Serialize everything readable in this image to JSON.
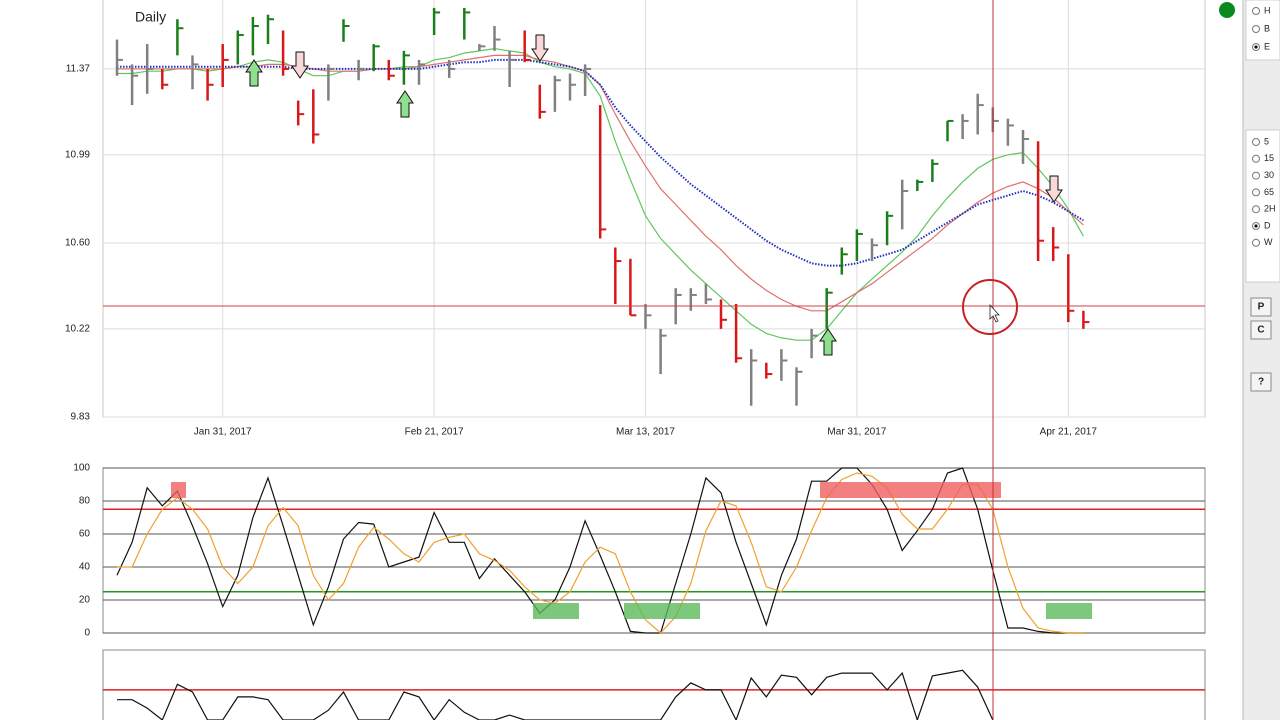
{
  "chart_data": [
    {
      "type": "ohlc",
      "title": "Daily",
      "categories": [
        null,
        null,
        null,
        null,
        null,
        null,
        null,
        "Jan 31, 2017",
        null,
        null,
        null,
        null,
        null,
        null,
        null,
        null,
        null,
        null,
        null,
        null,
        null,
        "Feb 21, 2017",
        null,
        null,
        null,
        null,
        null,
        null,
        null,
        null,
        null,
        null,
        null,
        null,
        null,
        "Mar 13, 2017",
        null,
        null,
        null,
        null,
        null,
        null,
        null,
        null,
        null,
        null,
        null,
        null,
        null,
        "Mar 31, 2017",
        null,
        null,
        null,
        null,
        null,
        null,
        null,
        null,
        null,
        null,
        null,
        null,
        null,
        "Apr 21, 2017",
        null
      ],
      "high": [
        11.5,
        11.39,
        11.48,
        11.37,
        11.59,
        11.43,
        11.37,
        11.48,
        11.54,
        11.6,
        11.61,
        11.54,
        11.23,
        11.28,
        11.39,
        11.59,
        11.41,
        11.48,
        11.41,
        11.45,
        11.41,
        11.64,
        11.41,
        11.64,
        11.48,
        11.56,
        11.45,
        11.54,
        11.3,
        11.34,
        11.35,
        11.39,
        11.21,
        10.58,
        10.53,
        10.33,
        10.22,
        10.4,
        10.4,
        10.42,
        10.35,
        10.33,
        10.13,
        10.07,
        10.13,
        10.05,
        10.22,
        10.4,
        10.58,
        10.66,
        10.62,
        10.74,
        10.88,
        10.88,
        10.97,
        11.14,
        11.17,
        11.26,
        11.2,
        11.15,
        11.1,
        11.05,
        10.67,
        10.55,
        10.3
      ],
      "low": [
        11.34,
        11.21,
        11.26,
        11.28,
        11.43,
        11.28,
        11.23,
        11.29,
        11.39,
        11.43,
        11.48,
        11.34,
        11.12,
        11.04,
        11.23,
        11.49,
        11.32,
        11.36,
        11.32,
        11.3,
        11.3,
        11.52,
        11.33,
        11.5,
        11.45,
        11.45,
        11.29,
        11.4,
        11.15,
        11.18,
        11.23,
        11.25,
        10.62,
        10.33,
        10.28,
        10.22,
        10.02,
        10.24,
        10.3,
        10.33,
        10.22,
        10.07,
        9.88,
        10.0,
        9.99,
        9.88,
        10.09,
        10.22,
        10.46,
        10.52,
        10.52,
        10.59,
        10.66,
        10.83,
        10.87,
        11.05,
        11.06,
        11.08,
        11.09,
        11.03,
        10.95,
        10.52,
        10.52,
        10.25,
        10.22
      ],
      "close": [
        11.41,
        11.34,
        11.37,
        11.3,
        11.55,
        11.39,
        11.3,
        11.41,
        11.52,
        11.56,
        11.59,
        11.37,
        11.17,
        11.08,
        11.37,
        11.56,
        11.37,
        11.47,
        11.34,
        11.43,
        11.39,
        11.62,
        11.37,
        11.62,
        11.47,
        11.5,
        11.41,
        11.41,
        11.18,
        11.32,
        11.3,
        11.37,
        10.66,
        10.52,
        10.28,
        10.28,
        10.19,
        10.37,
        10.37,
        10.35,
        10.26,
        10.09,
        10.08,
        10.02,
        10.08,
        10.03,
        10.19,
        10.38,
        10.55,
        10.64,
        10.59,
        10.72,
        10.83,
        10.87,
        10.95,
        11.14,
        11.14,
        11.21,
        11.14,
        11.12,
        11.06,
        10.61,
        10.58,
        10.3,
        10.25
      ],
      "colors": [
        "#808080",
        "#808080",
        "#808080",
        "#d81818",
        "#1a7f1a",
        "#808080",
        "#d81818",
        "#d81818",
        "#1a7f1a",
        "#1a7f1a",
        "#1a7f1a",
        "#d81818",
        "#d81818",
        "#d81818",
        "#808080",
        "#1a7f1a",
        "#808080",
        "#1a7f1a",
        "#d81818",
        "#1a7f1a",
        "#808080",
        "#1a7f1a",
        "#808080",
        "#1a7f1a",
        "#808080",
        "#808080",
        "#808080",
        "#d81818",
        "#d81818",
        "#808080",
        "#808080",
        "#808080",
        "#d81818",
        "#d81818",
        "#d81818",
        "#808080",
        "#808080",
        "#808080",
        "#808080",
        "#808080",
        "#d81818",
        "#d81818",
        "#808080",
        "#d81818",
        "#808080",
        "#808080",
        "#808080",
        "#1a7f1a",
        "#1a7f1a",
        "#1a7f1a",
        "#808080",
        "#1a7f1a",
        "#808080",
        "#1a7f1a",
        "#1a7f1a",
        "#1a7f1a",
        "#808080",
        "#808080",
        "#808080",
        "#808080",
        "#808080",
        "#d81818",
        "#d81818",
        "#d81818",
        "#d81818"
      ],
      "series": [
        {
          "color": "#5cc85c",
          "style": "solid",
          "values": [
            11.35,
            11.35,
            11.36,
            11.36,
            11.37,
            11.37,
            11.36,
            11.37,
            11.38,
            11.4,
            11.41,
            11.4,
            11.37,
            11.34,
            11.34,
            11.36,
            11.36,
            11.37,
            11.37,
            11.38,
            11.38,
            11.41,
            11.42,
            11.44,
            11.45,
            11.46,
            11.45,
            11.44,
            11.4,
            11.38,
            11.37,
            11.35,
            11.25,
            11.05,
            10.88,
            10.72,
            10.62,
            10.55,
            10.48,
            10.42,
            10.36,
            10.3,
            10.24,
            10.2,
            10.18,
            10.17,
            10.17,
            10.22,
            10.3,
            10.38,
            10.44,
            10.5,
            10.56,
            10.63,
            10.72,
            10.8,
            10.87,
            10.93,
            10.97,
            10.99,
            11.0,
            10.93,
            10.85,
            10.75,
            10.63
          ]
        },
        {
          "color": "#e07070",
          "style": "solid",
          "values": [
            11.37,
            11.37,
            11.37,
            11.37,
            11.37,
            11.37,
            11.37,
            11.37,
            11.38,
            11.38,
            11.39,
            11.39,
            11.38,
            11.37,
            11.36,
            11.36,
            11.36,
            11.37,
            11.37,
            11.37,
            11.38,
            11.39,
            11.4,
            11.41,
            11.42,
            11.43,
            11.43,
            11.43,
            11.41,
            11.4,
            11.38,
            11.36,
            11.3,
            11.17,
            11.05,
            10.94,
            10.84,
            10.77,
            10.7,
            10.63,
            10.57,
            10.5,
            10.44,
            10.39,
            10.35,
            10.32,
            10.3,
            10.3,
            10.34,
            10.38,
            10.42,
            10.47,
            10.52,
            10.57,
            10.62,
            10.68,
            10.73,
            10.78,
            10.82,
            10.85,
            10.87,
            10.84,
            10.8,
            10.74,
            10.68
          ]
        },
        {
          "color": "#2030c0",
          "style": "dotted",
          "values": [
            11.38,
            11.38,
            11.38,
            11.38,
            11.38,
            11.38,
            11.38,
            11.38,
            11.38,
            11.38,
            11.38,
            11.38,
            11.37,
            11.37,
            11.37,
            11.37,
            11.37,
            11.37,
            11.37,
            11.37,
            11.37,
            11.38,
            11.39,
            11.4,
            11.4,
            11.41,
            11.41,
            11.41,
            11.4,
            11.39,
            11.38,
            11.36,
            11.3,
            11.2,
            11.12,
            11.05,
            10.98,
            10.92,
            10.86,
            10.81,
            10.76,
            10.71,
            10.66,
            10.61,
            10.57,
            10.54,
            10.51,
            10.5,
            10.5,
            10.51,
            10.53,
            10.55,
            10.57,
            10.61,
            10.65,
            10.69,
            10.73,
            10.77,
            10.79,
            10.81,
            10.83,
            10.81,
            10.78,
            10.74,
            10.7
          ]
        }
      ],
      "ylim": [
        9.83,
        11.675
      ],
      "yticks": [
        9.83,
        10.22,
        {
          "value": 10.6,
          "label": "10.60"
        },
        10.99,
        11.37
      ],
      "grid": true
    },
    {
      "type": "line",
      "series": [
        {
          "color": "#111111",
          "values": [
            35,
            55,
            88,
            77,
            86,
            65,
            42,
            16,
            35,
            70,
            94,
            65,
            35,
            5,
            28,
            57,
            67,
            66,
            40,
            43,
            46,
            73,
            55,
            55,
            33,
            45,
            35,
            25,
            12,
            20,
            40,
            68,
            47,
            25,
            1,
            0,
            0,
            30,
            60,
            94,
            85,
            55,
            30,
            5,
            35,
            57,
            92,
            92,
            100,
            100,
            90,
            75,
            50,
            62,
            75,
            97,
            100,
            75,
            38,
            3,
            3,
            1,
            0,
            0,
            0
          ]
        },
        {
          "color": "#f0a030",
          "values": [
            40,
            40,
            60,
            75,
            82,
            75,
            63,
            40,
            30,
            40,
            65,
            76,
            65,
            35,
            20,
            30,
            52,
            64,
            57,
            48,
            43,
            55,
            58,
            60,
            48,
            44,
            38,
            28,
            20,
            18,
            25,
            43,
            52,
            48,
            25,
            8,
            0,
            10,
            30,
            62,
            80,
            77,
            55,
            28,
            25,
            40,
            62,
            82,
            93,
            97,
            95,
            88,
            72,
            63,
            63,
            75,
            90,
            90,
            75,
            40,
            15,
            3,
            1,
            0,
            0
          ]
        }
      ],
      "levels": [
        {
          "value": 75,
          "color": "#e02020"
        },
        {
          "value": 25,
          "color": "#1f9a1f"
        }
      ],
      "ylim": [
        0,
        100
      ],
      "yticks": [
        0,
        20,
        40,
        60,
        80,
        100
      ],
      "grid": true
    },
    {
      "type": "line",
      "series": [
        {
          "color": "#111111",
          "values": [
            29,
            29,
            17,
            0,
            51,
            40,
            0,
            0,
            33,
            33,
            29,
            0,
            0,
            0,
            14,
            40,
            0,
            0,
            0,
            40,
            33,
            0,
            29,
            11,
            0,
            0,
            7,
            0,
            0,
            0,
            0,
            0,
            0,
            0,
            0,
            0,
            0,
            33,
            53,
            43,
            43,
            0,
            60,
            33,
            64,
            61,
            36,
            61,
            67,
            67,
            67,
            43,
            67,
            0,
            63,
            67,
            71,
            47,
            0,
            null,
            null,
            null,
            null,
            null,
            null
          ]
        }
      ],
      "levels": [
        {
          "value": 43,
          "color": "#e02020"
        }
      ],
      "ylim": [
        0,
        100
      ]
    }
  ],
  "sidebar": {
    "top_options": [
      {
        "label": "H",
        "checked": false
      },
      {
        "label": "B",
        "checked": false
      },
      {
        "label": "E",
        "checked": true
      }
    ],
    "period_options": [
      {
        "label": "5",
        "checked": false
      },
      {
        "label": "15",
        "checked": false
      },
      {
        "label": "30",
        "checked": false
      },
      {
        "label": "65",
        "checked": false
      },
      {
        "label": "2H",
        "checked": false
      },
      {
        "label": "D",
        "checked": true
      },
      {
        "label": "W",
        "checked": false
      }
    ],
    "buttons": [
      "P",
      "C",
      "?"
    ]
  }
}
